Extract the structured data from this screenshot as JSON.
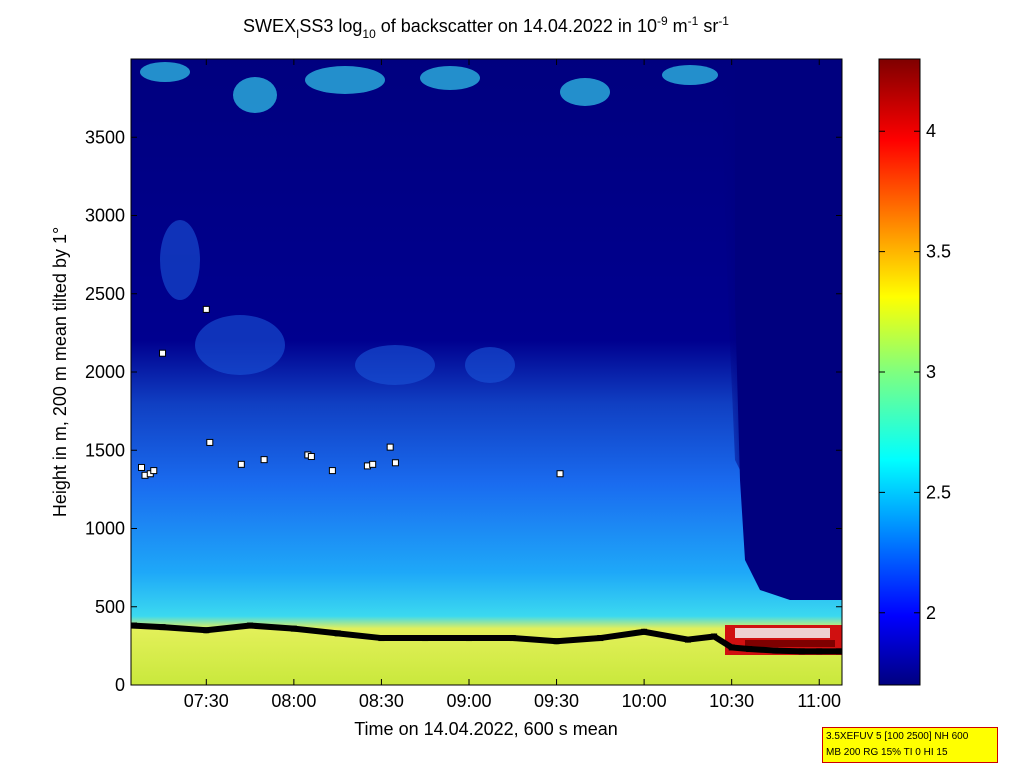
{
  "chart_data": {
    "type": "heatmap",
    "title": {
      "prefix": "SWEX",
      "sub1": "I",
      "mid": "SS3 log",
      "sub2": "10",
      "suffix": " of backscatter on 14.04.2022 in 10",
      "sup1": "-9",
      "unit_m": " m",
      "sup2": "-1",
      "unit_sr": " sr",
      "sup3": "-1"
    },
    "xlabel": "Time on 14.04.2022, 600 s mean",
    "ylabel": "Height in m, 200 m mean tilted by 1°",
    "x_ticks": [
      "07:30",
      "08:00",
      "08:30",
      "09:00",
      "09:30",
      "10:00",
      "10:30",
      "11:00"
    ],
    "x_tick_hours": [
      7.5,
      8.0,
      8.5,
      9.0,
      9.5,
      10.0,
      10.5,
      11.0
    ],
    "xlim_hours": [
      7.07,
      11.13
    ],
    "y_ticks": [
      0,
      500,
      1000,
      1500,
      2000,
      2500,
      3000,
      3500
    ],
    "ylim": [
      0,
      4000
    ],
    "colorbar": {
      "ticks": [
        "2",
        "2.5",
        "3",
        "3.5",
        "4"
      ],
      "tick_values": [
        2,
        2.5,
        3,
        3.5,
        4
      ],
      "range": [
        1.7,
        4.3
      ],
      "colormap": "jet"
    },
    "colors": {
      "background_field": "#00007f",
      "boundary_layer": "#d8ee4a",
      "mixed_layer": "#1f8cff",
      "marker_fill": "#ffffff",
      "marker_line": "#000000"
    },
    "series": [
      {
        "marker": "black-squares",
        "x_hours": [
          7.0,
          7.25,
          7.5,
          7.75,
          8.0,
          8.25,
          8.5,
          8.75,
          9.0,
          9.25,
          9.5,
          9.75,
          10.0,
          10.25,
          10.4,
          10.5,
          10.6,
          10.75,
          10.9,
          11.0,
          11.13
        ],
        "y": [
          380,
          370,
          350,
          380,
          360,
          330,
          300,
          300,
          300,
          300,
          280,
          300,
          340,
          290,
          310,
          240,
          230,
          220,
          215,
          215,
          215
        ]
      },
      {
        "marker": "white-squares",
        "x_hours": [
          7.13,
          7.15,
          7.18,
          7.2,
          7.25,
          7.5,
          7.52,
          7.7,
          7.83,
          8.08,
          8.1,
          8.22,
          8.42,
          8.45,
          8.55,
          8.58,
          9.52
        ],
        "y": [
          1390,
          1340,
          1350,
          1370,
          2120,
          2400,
          1550,
          1410,
          1440,
          1470,
          1460,
          1370,
          1400,
          1410,
          1520,
          1420,
          1350
        ]
      }
    ]
  },
  "info_box": {
    "line1": "3.5XEFUV 5 [100 2500] NH 600",
    "line2": "MB 200 RG 15% TI 0 HI 15"
  }
}
